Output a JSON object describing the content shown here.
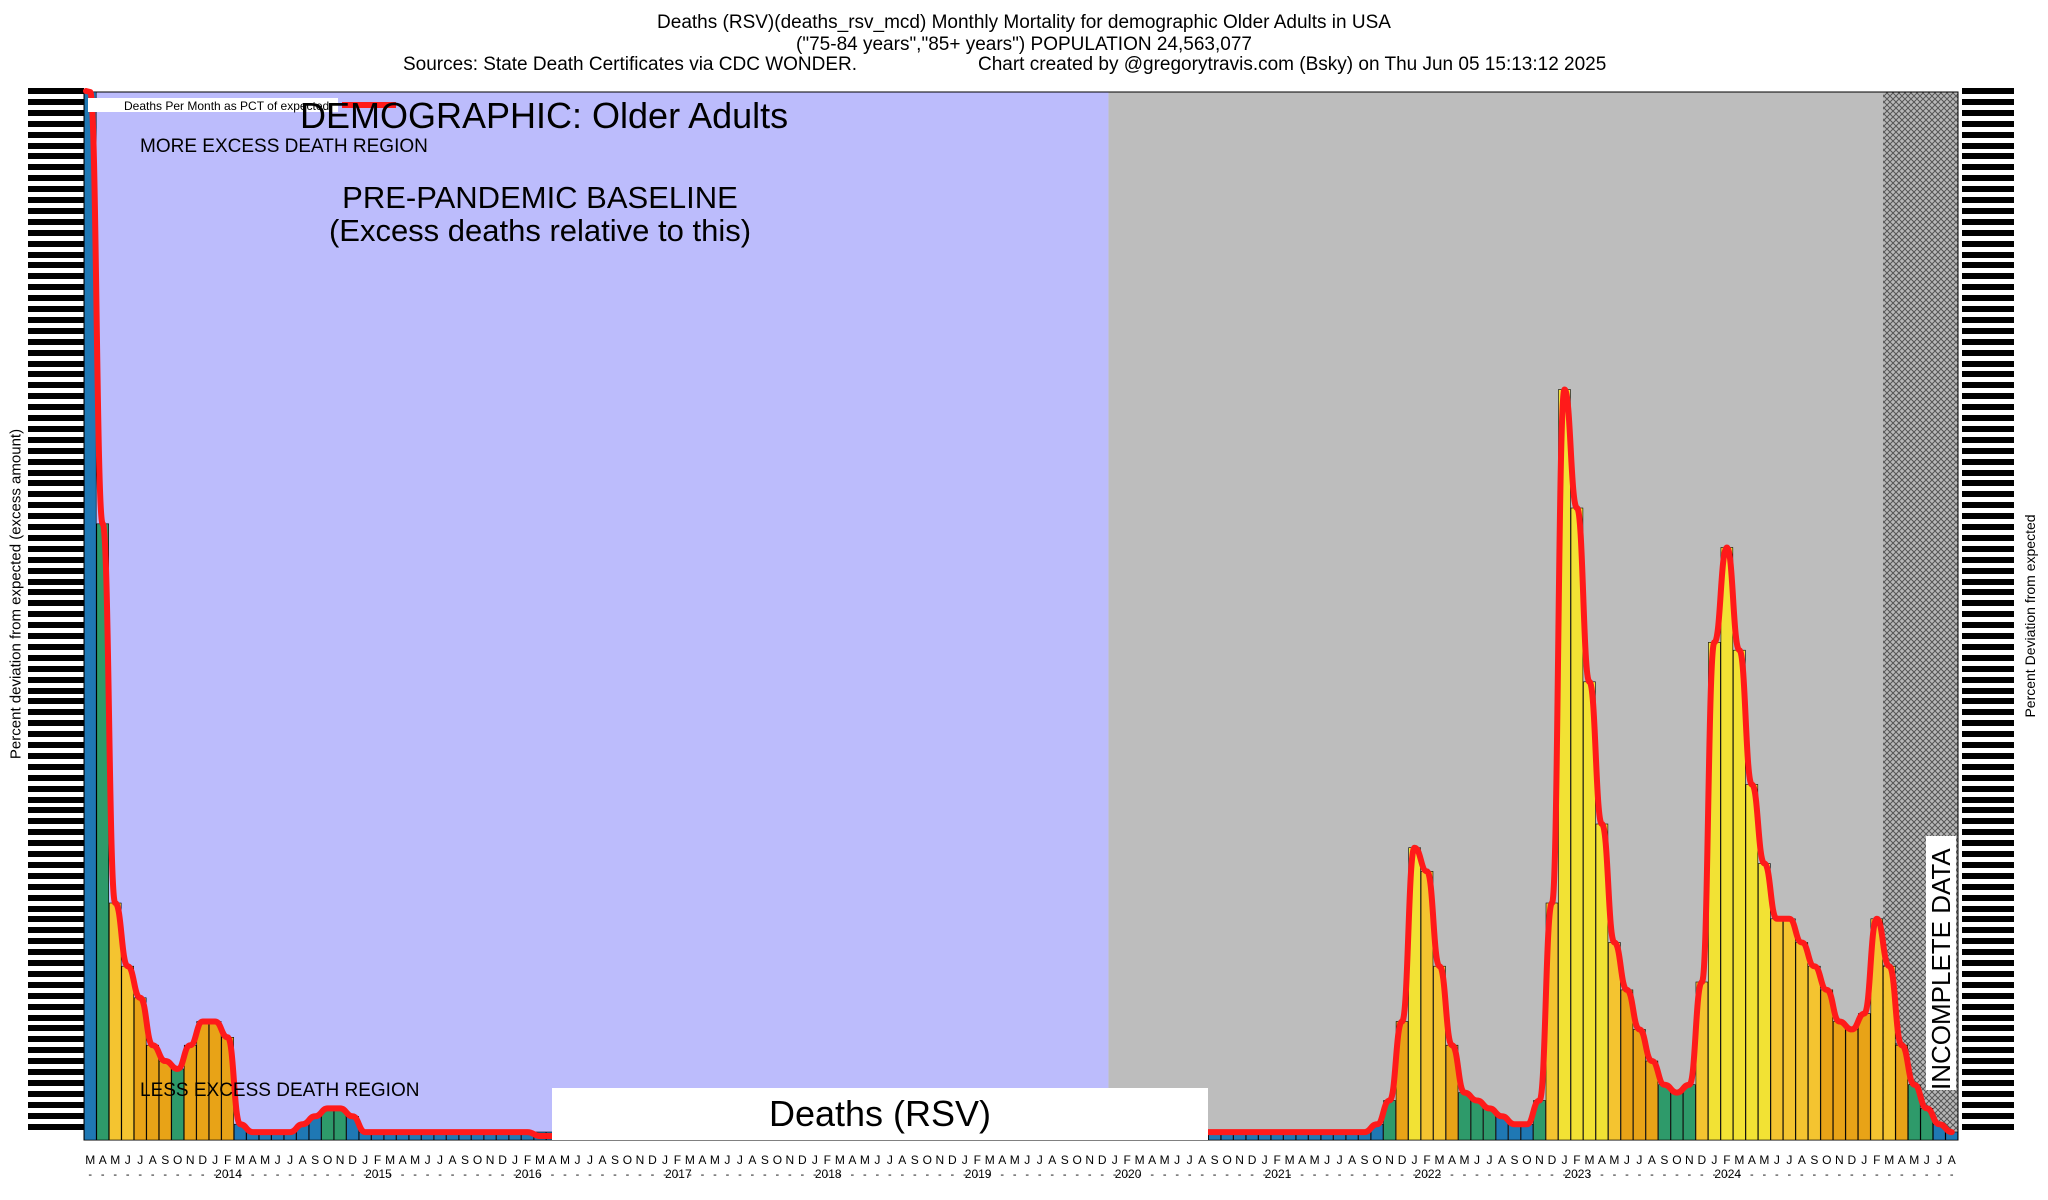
{
  "header": {
    "title_line1": "Deaths (RSV)(deaths_rsv_mcd) Monthly Mortality for demographic Older Adults in USA",
    "title_line2": "(\"75-84 years\",\"85+ years\") POPULATION 24,563,077",
    "sources": "Sources: State Death Certificates via CDC WONDER.",
    "credit": "Chart created by @gregorytravis.com (Bsky) on Thu Jun 05 15:13:12 2025"
  },
  "chart_data": {
    "type": "bar",
    "title": "Deaths (RSV)(deaths_rsv_mcd) Monthly Mortality for demographic Older Adults in USA",
    "ylabel_left": "Percent deviation from expected (excess amount)",
    "ylabel_right": "Percent Deviation from expected",
    "legend_label": "Deaths Per Month as PCT of expected",
    "demographic_label": "DEMOGRAPHIC: Older Adults",
    "region_top_label": "MORE EXCESS DEATH REGION",
    "region_bottom_label": "LESS EXCESS DEATH REGION",
    "baseline_label_1": "PRE-PANDEMIC BASELINE",
    "baseline_label_2": "(Excess deaths relative to this)",
    "incomplete_label": "INCOMPLETE DATA",
    "series_label": "Deaths (RSV)",
    "start_year": 2013,
    "start_month_index": 2,
    "month_letters": [
      "J",
      "F",
      "M",
      "A",
      "M",
      "J",
      "J",
      "A",
      "S",
      "O",
      "N",
      "D"
    ],
    "year_labels": [
      "2014",
      "2015",
      "2016",
      "2017",
      "2018",
      "2019",
      "2020",
      "2021",
      "2022",
      "2023",
      "2024"
    ],
    "baseline_months": 82,
    "incomplete_months": 6,
    "values": [
      10,
      0.78,
      0.3,
      0.22,
      0.18,
      0.12,
      0.1,
      0.09,
      0.12,
      0.15,
      0.15,
      0.13,
      0.02,
      0.01,
      0.01,
      0.01,
      0.01,
      0.02,
      0.03,
      0.04,
      0.04,
      0.03,
      0.01,
      0.01,
      0.01,
      0.01,
      0.01,
      0.01,
      0.01,
      0.01,
      0.01,
      0.01,
      0.01,
      0.01,
      0.01,
      0.01,
      0.005,
      0.005,
      0.005,
      0.005,
      0.005,
      0.005,
      0.005,
      0.005,
      0.005,
      0.005,
      0.005,
      0.005,
      0.005,
      0.005,
      0.005,
      0.005,
      0.005,
      0.005,
      0.005,
      0.005,
      0.005,
      0.005,
      0.005,
      0.005,
      0.005,
      0.005,
      0.005,
      0.005,
      0.005,
      0.005,
      0.005,
      0.005,
      0.005,
      0.005,
      0.005,
      0.005,
      0.005,
      0.005,
      0.005,
      0.005,
      0.005,
      0.005,
      0.005,
      0.005,
      0.005,
      0.005,
      0.005,
      0.005,
      0.01,
      0.01,
      0.01,
      0.01,
      0.01,
      0.01,
      0.01,
      0.01,
      0.01,
      0.01,
      0.01,
      0.01,
      0.01,
      0.01,
      0.01,
      0.01,
      0.01,
      0.01,
      0.01,
      0.02,
      0.05,
      0.15,
      0.37,
      0.34,
      0.22,
      0.12,
      0.06,
      0.05,
      0.04,
      0.03,
      0.02,
      0.02,
      0.05,
      0.3,
      0.95,
      0.8,
      0.58,
      0.4,
      0.25,
      0.19,
      0.14,
      0.1,
      0.07,
      0.06,
      0.07,
      0.2,
      0.63,
      0.75,
      0.62,
      0.45,
      0.35,
      0.28,
      0.28,
      0.25,
      0.22,
      0.19,
      0.15,
      0.14,
      0.16,
      0.28,
      0.22,
      0.12,
      0.07,
      0.04,
      0.02,
      0.01
    ]
  }
}
